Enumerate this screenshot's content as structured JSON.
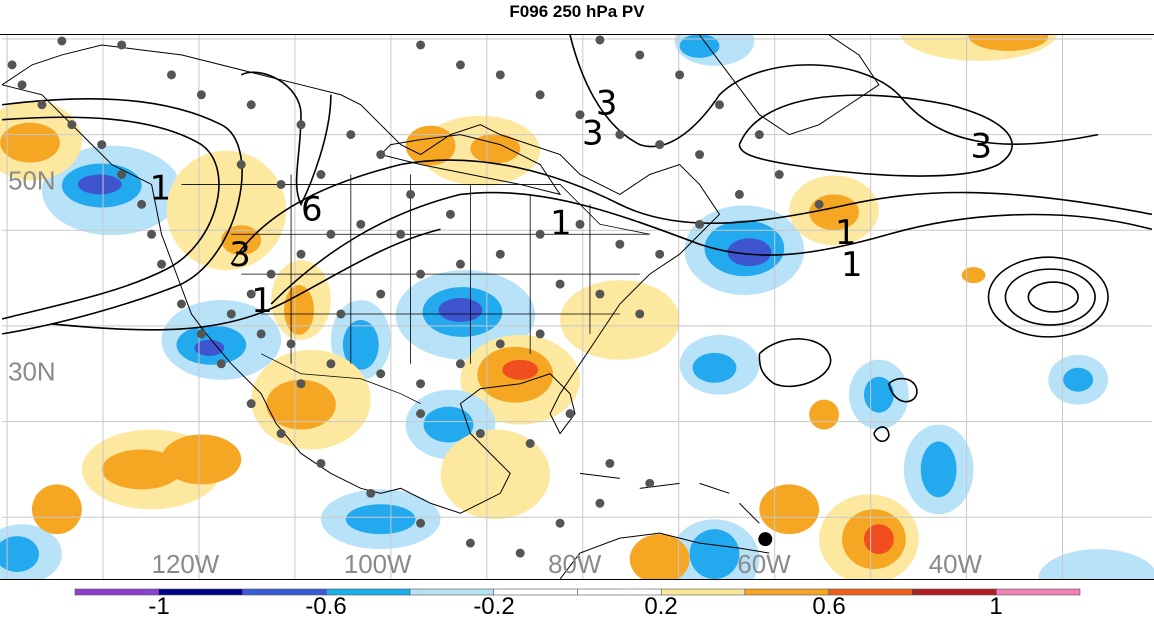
{
  "title": "F096 250 hPa PV",
  "lat_labels": [
    "50N",
    "30N"
  ],
  "lon_labels": [
    "120W",
    "100W",
    "80W",
    "60W",
    "40W"
  ],
  "contour_labels": [
    "1",
    "3",
    "6",
    "1",
    "1",
    "3",
    "3",
    "1",
    "1",
    "3"
  ],
  "colorbar": {
    "tick_labels": [
      "-1",
      "-0.6",
      "-0.2",
      "0.2",
      "0.6",
      "1"
    ],
    "colors": [
      "#8f3fd0",
      "#00008b",
      "#3a5bd9",
      "#1ab0ee",
      "#b5e3f7",
      "#ffffff",
      "#ffffff",
      "#fde69a",
      "#f5a623",
      "#f05f1e",
      "#b02020",
      "#f27fb5"
    ]
  },
  "shading_colors": {
    "neg_weak": "#b8e2f8",
    "neg_mod": "#22a9ee",
    "neg_strong": "#3f55cf",
    "pos_weak": "#fde8a0",
    "pos_mod": "#f5a623",
    "pos_strong": "#f04e1e"
  }
}
